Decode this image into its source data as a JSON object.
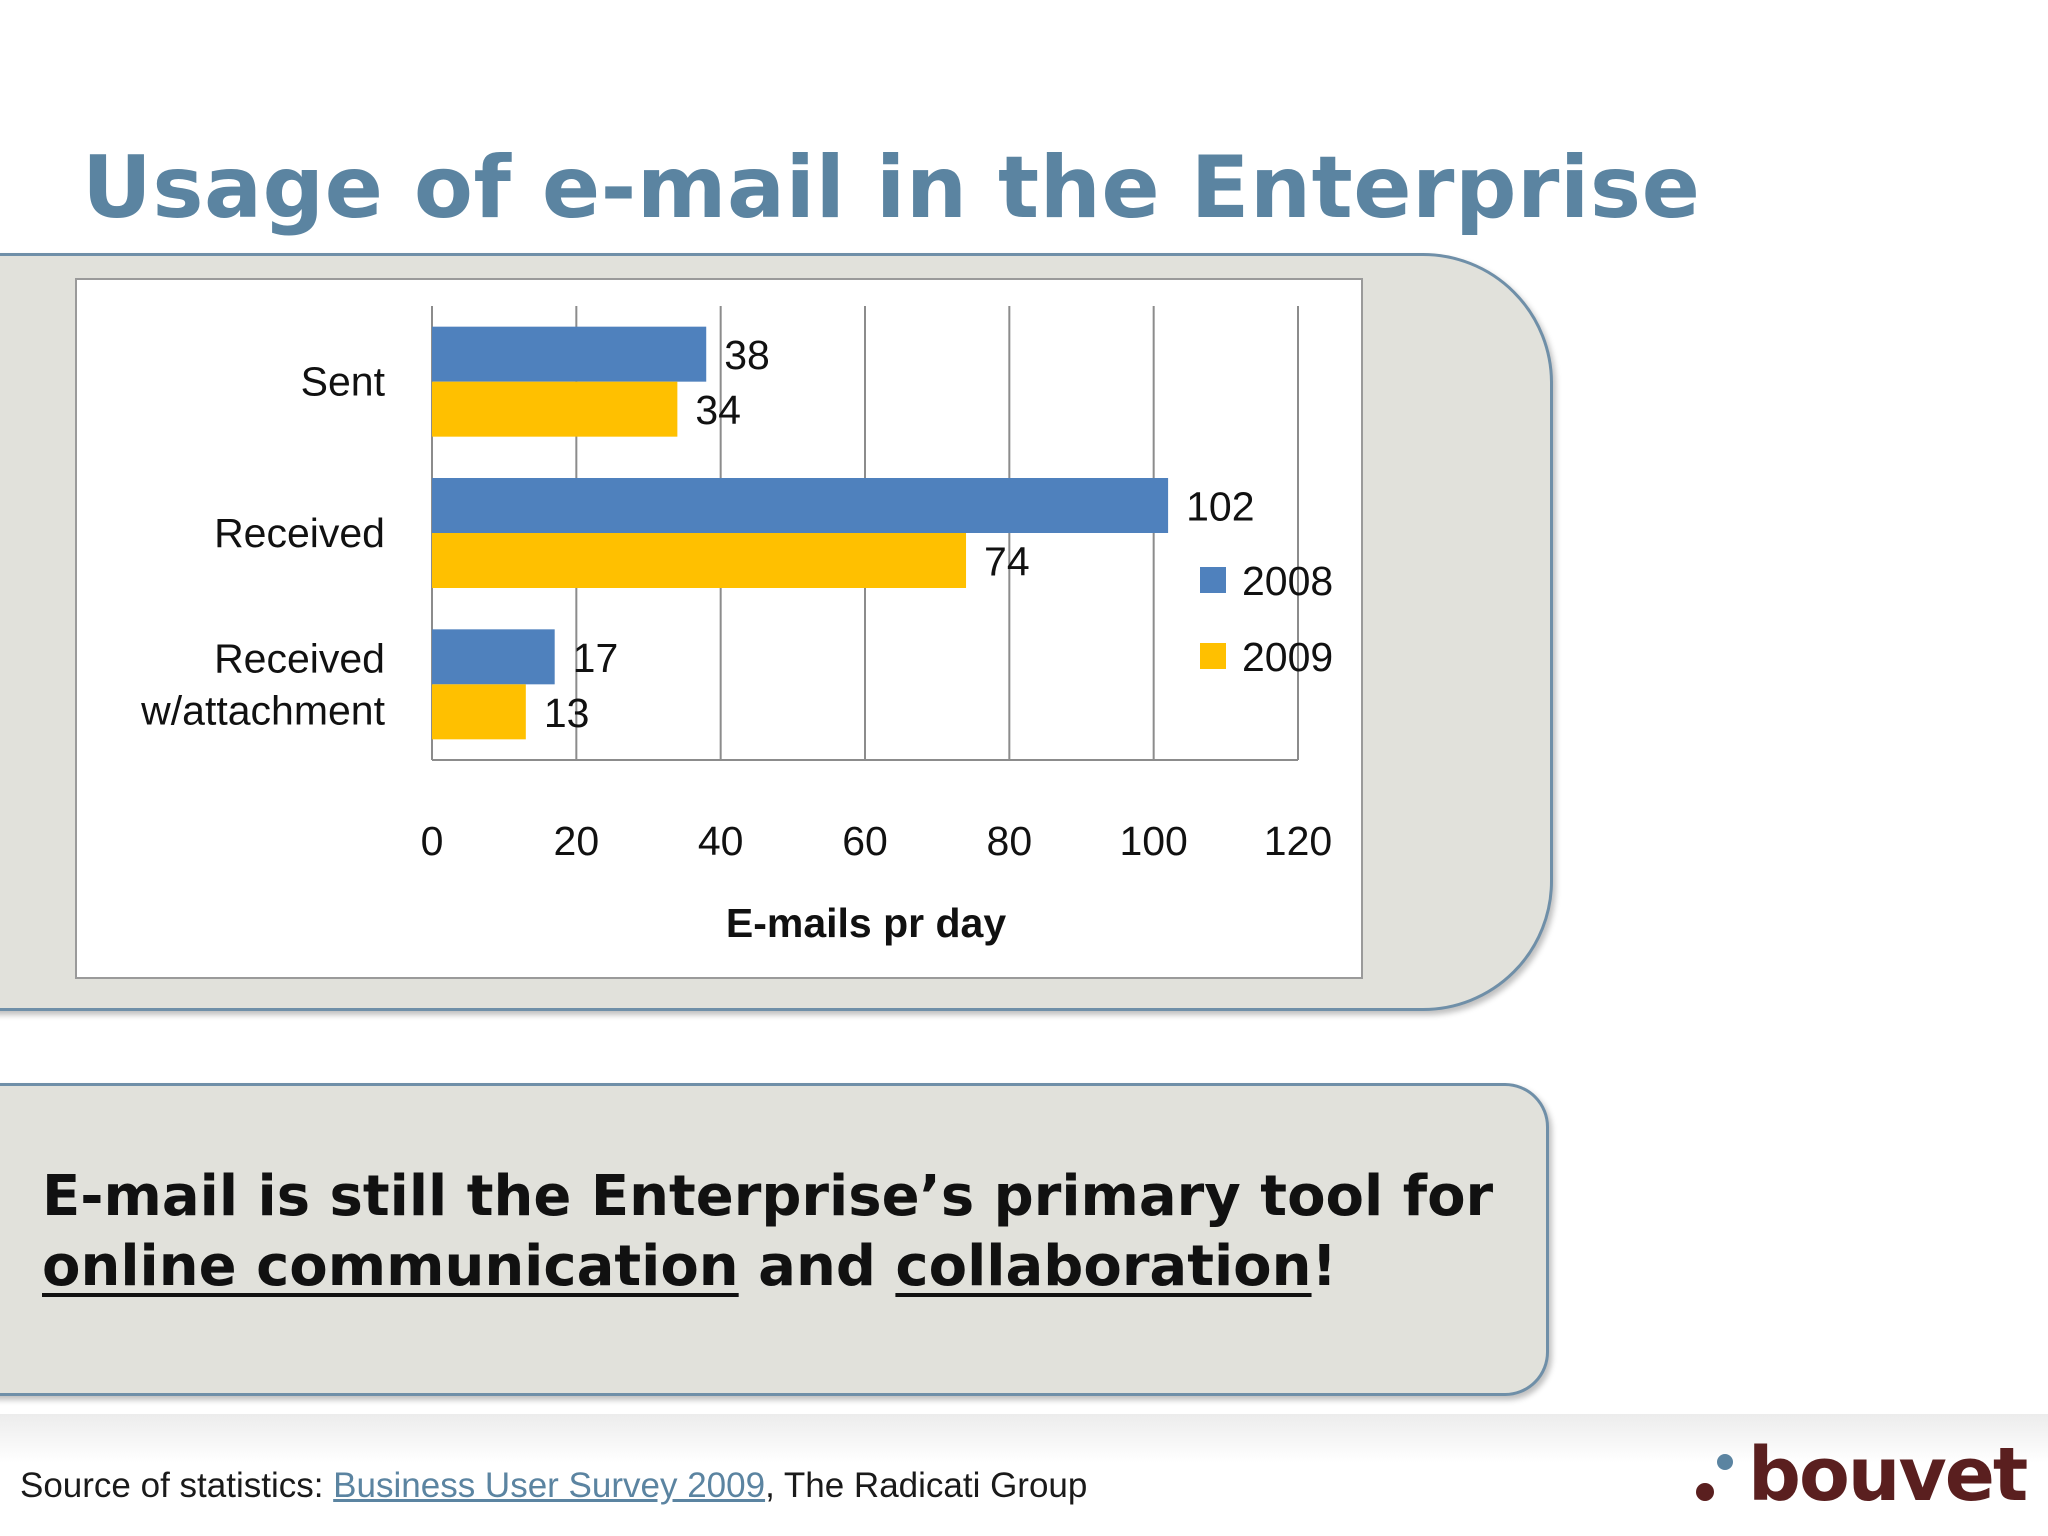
{
  "slide": {
    "title": "Usage of e-mail in the Enterprise"
  },
  "message": {
    "line1": "E-mail is still the Enterprise’s primary tool for",
    "link1": "online communication",
    "mid": " and ",
    "link2": "collaboration",
    "end": "!"
  },
  "footer": {
    "source_prefix": "Source of statistics: ",
    "source_link": "Business User Survey 2009",
    "source_suffix": ", The Radicati Group",
    "logo_text": "bouvet"
  },
  "colors": {
    "title": "#5b84a1",
    "series_2008": "#4f81bd",
    "series_2009": "#ffc000",
    "logo_dots": [
      "#5a1f1f",
      "#5b84a1"
    ]
  },
  "chart_data": {
    "type": "bar",
    "orientation": "horizontal",
    "categories": [
      "Sent",
      "Received",
      "Received\nw/attachment"
    ],
    "series": [
      {
        "name": "2008",
        "values": [
          38,
          102,
          17
        ]
      },
      {
        "name": "2009",
        "values": [
          34,
          74,
          13
        ]
      }
    ],
    "title": "",
    "xlabel": "E-mails pr day",
    "ylabel": "",
    "xlim": [
      0,
      120
    ],
    "xticks": [
      0,
      20,
      40,
      60,
      80,
      100,
      120
    ],
    "grid": true,
    "legend_position": "right",
    "data_labels": true
  }
}
